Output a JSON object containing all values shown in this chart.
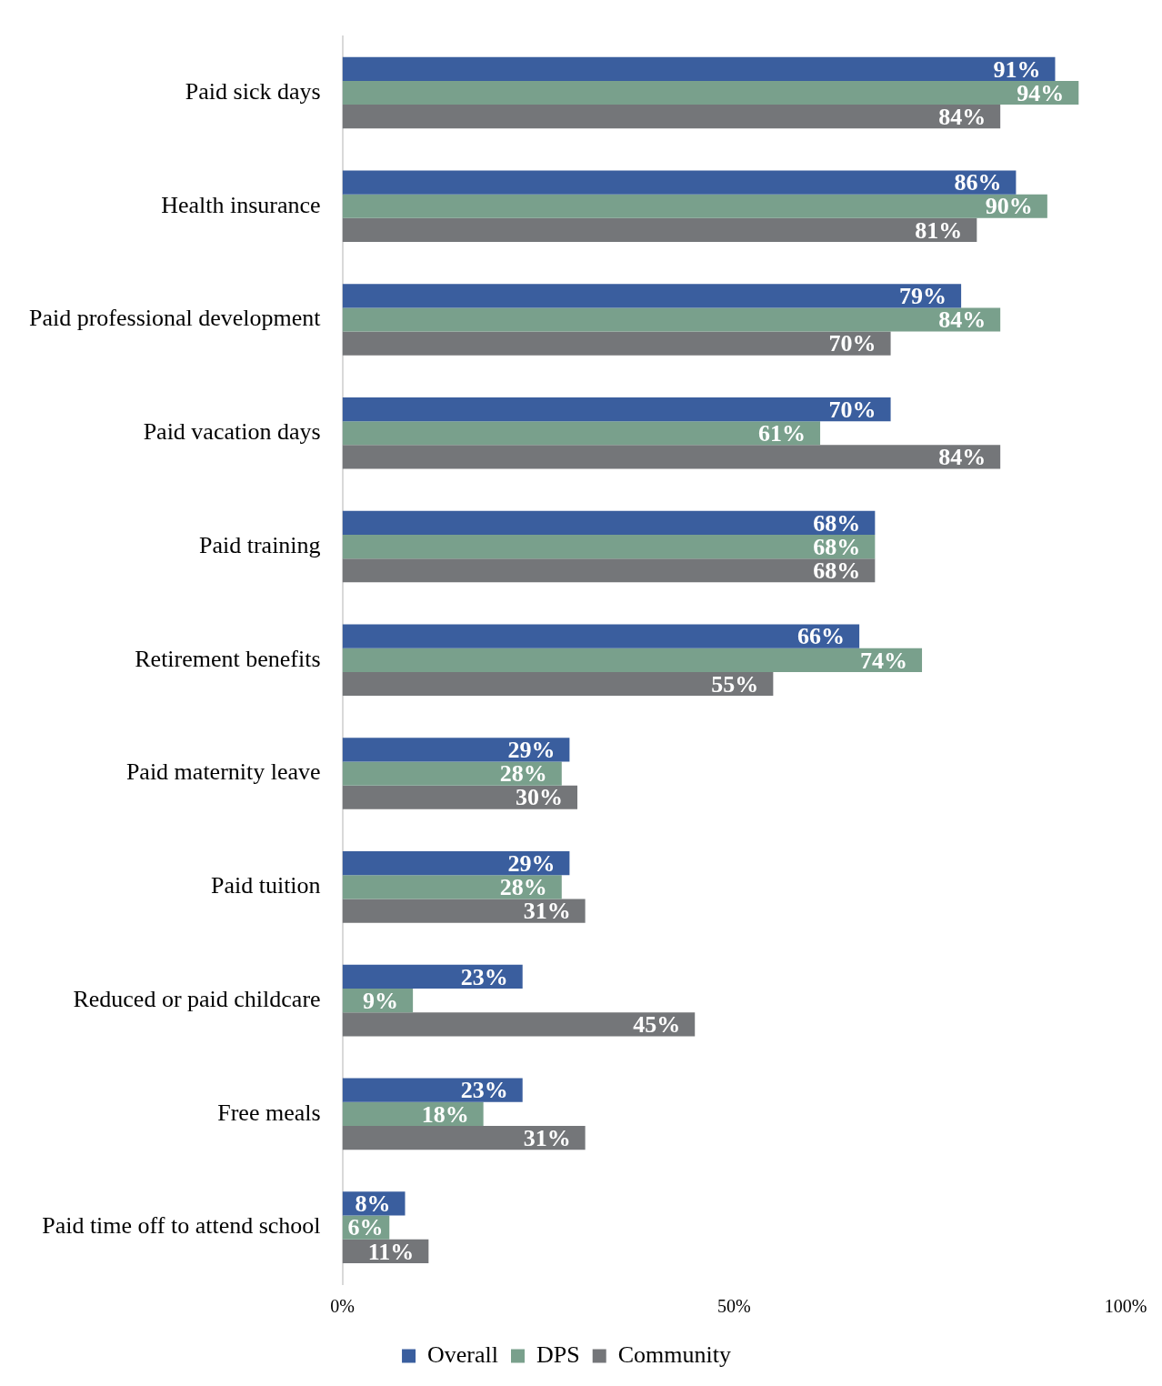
{
  "chart_data": {
    "type": "bar",
    "orientation": "horizontal",
    "categories": [
      "Paid sick days",
      "Health insurance",
      "Paid professional development",
      "Paid vacation days",
      "Paid training",
      "Retirement benefits",
      "Paid maternity leave",
      "Paid tuition",
      "Reduced or paid childcare",
      "Free meals",
      "Paid time off to attend school"
    ],
    "series": [
      {
        "name": "Overall",
        "color": "#3a5e9e",
        "values": [
          91,
          86,
          79,
          70,
          68,
          66,
          29,
          29,
          23,
          23,
          8
        ],
        "value_labels": [
          "91%",
          "86%",
          "79%",
          "70%",
          "68%",
          "66%",
          "29%",
          "29%",
          "23%",
          "23%",
          "8%"
        ]
      },
      {
        "name": "DPS",
        "color": "#79a08c",
        "values": [
          94,
          90,
          84,
          61,
          68,
          74,
          28,
          28,
          9,
          18,
          6
        ],
        "value_labels": [
          "94%",
          "90%",
          "84%",
          "61%",
          "68%",
          "74%",
          "28%",
          "28%",
          "9%",
          "18%",
          "6%"
        ]
      },
      {
        "name": "Community",
        "color": "#747679",
        "values": [
          84,
          81,
          70,
          84,
          68,
          55,
          30,
          31,
          45,
          31,
          11
        ],
        "value_labels": [
          "84%",
          "81%",
          "70%",
          "84%",
          "68%",
          "55%",
          "30%",
          "31%",
          "45%",
          "31%",
          "11%"
        ]
      }
    ],
    "xlim": [
      0,
      100
    ],
    "xticks": [
      {
        "value": 0,
        "label": "0%"
      },
      {
        "value": 50,
        "label": "50%"
      },
      {
        "value": 100,
        "label": "100%"
      }
    ],
    "grid": false,
    "legend": "bottom"
  }
}
